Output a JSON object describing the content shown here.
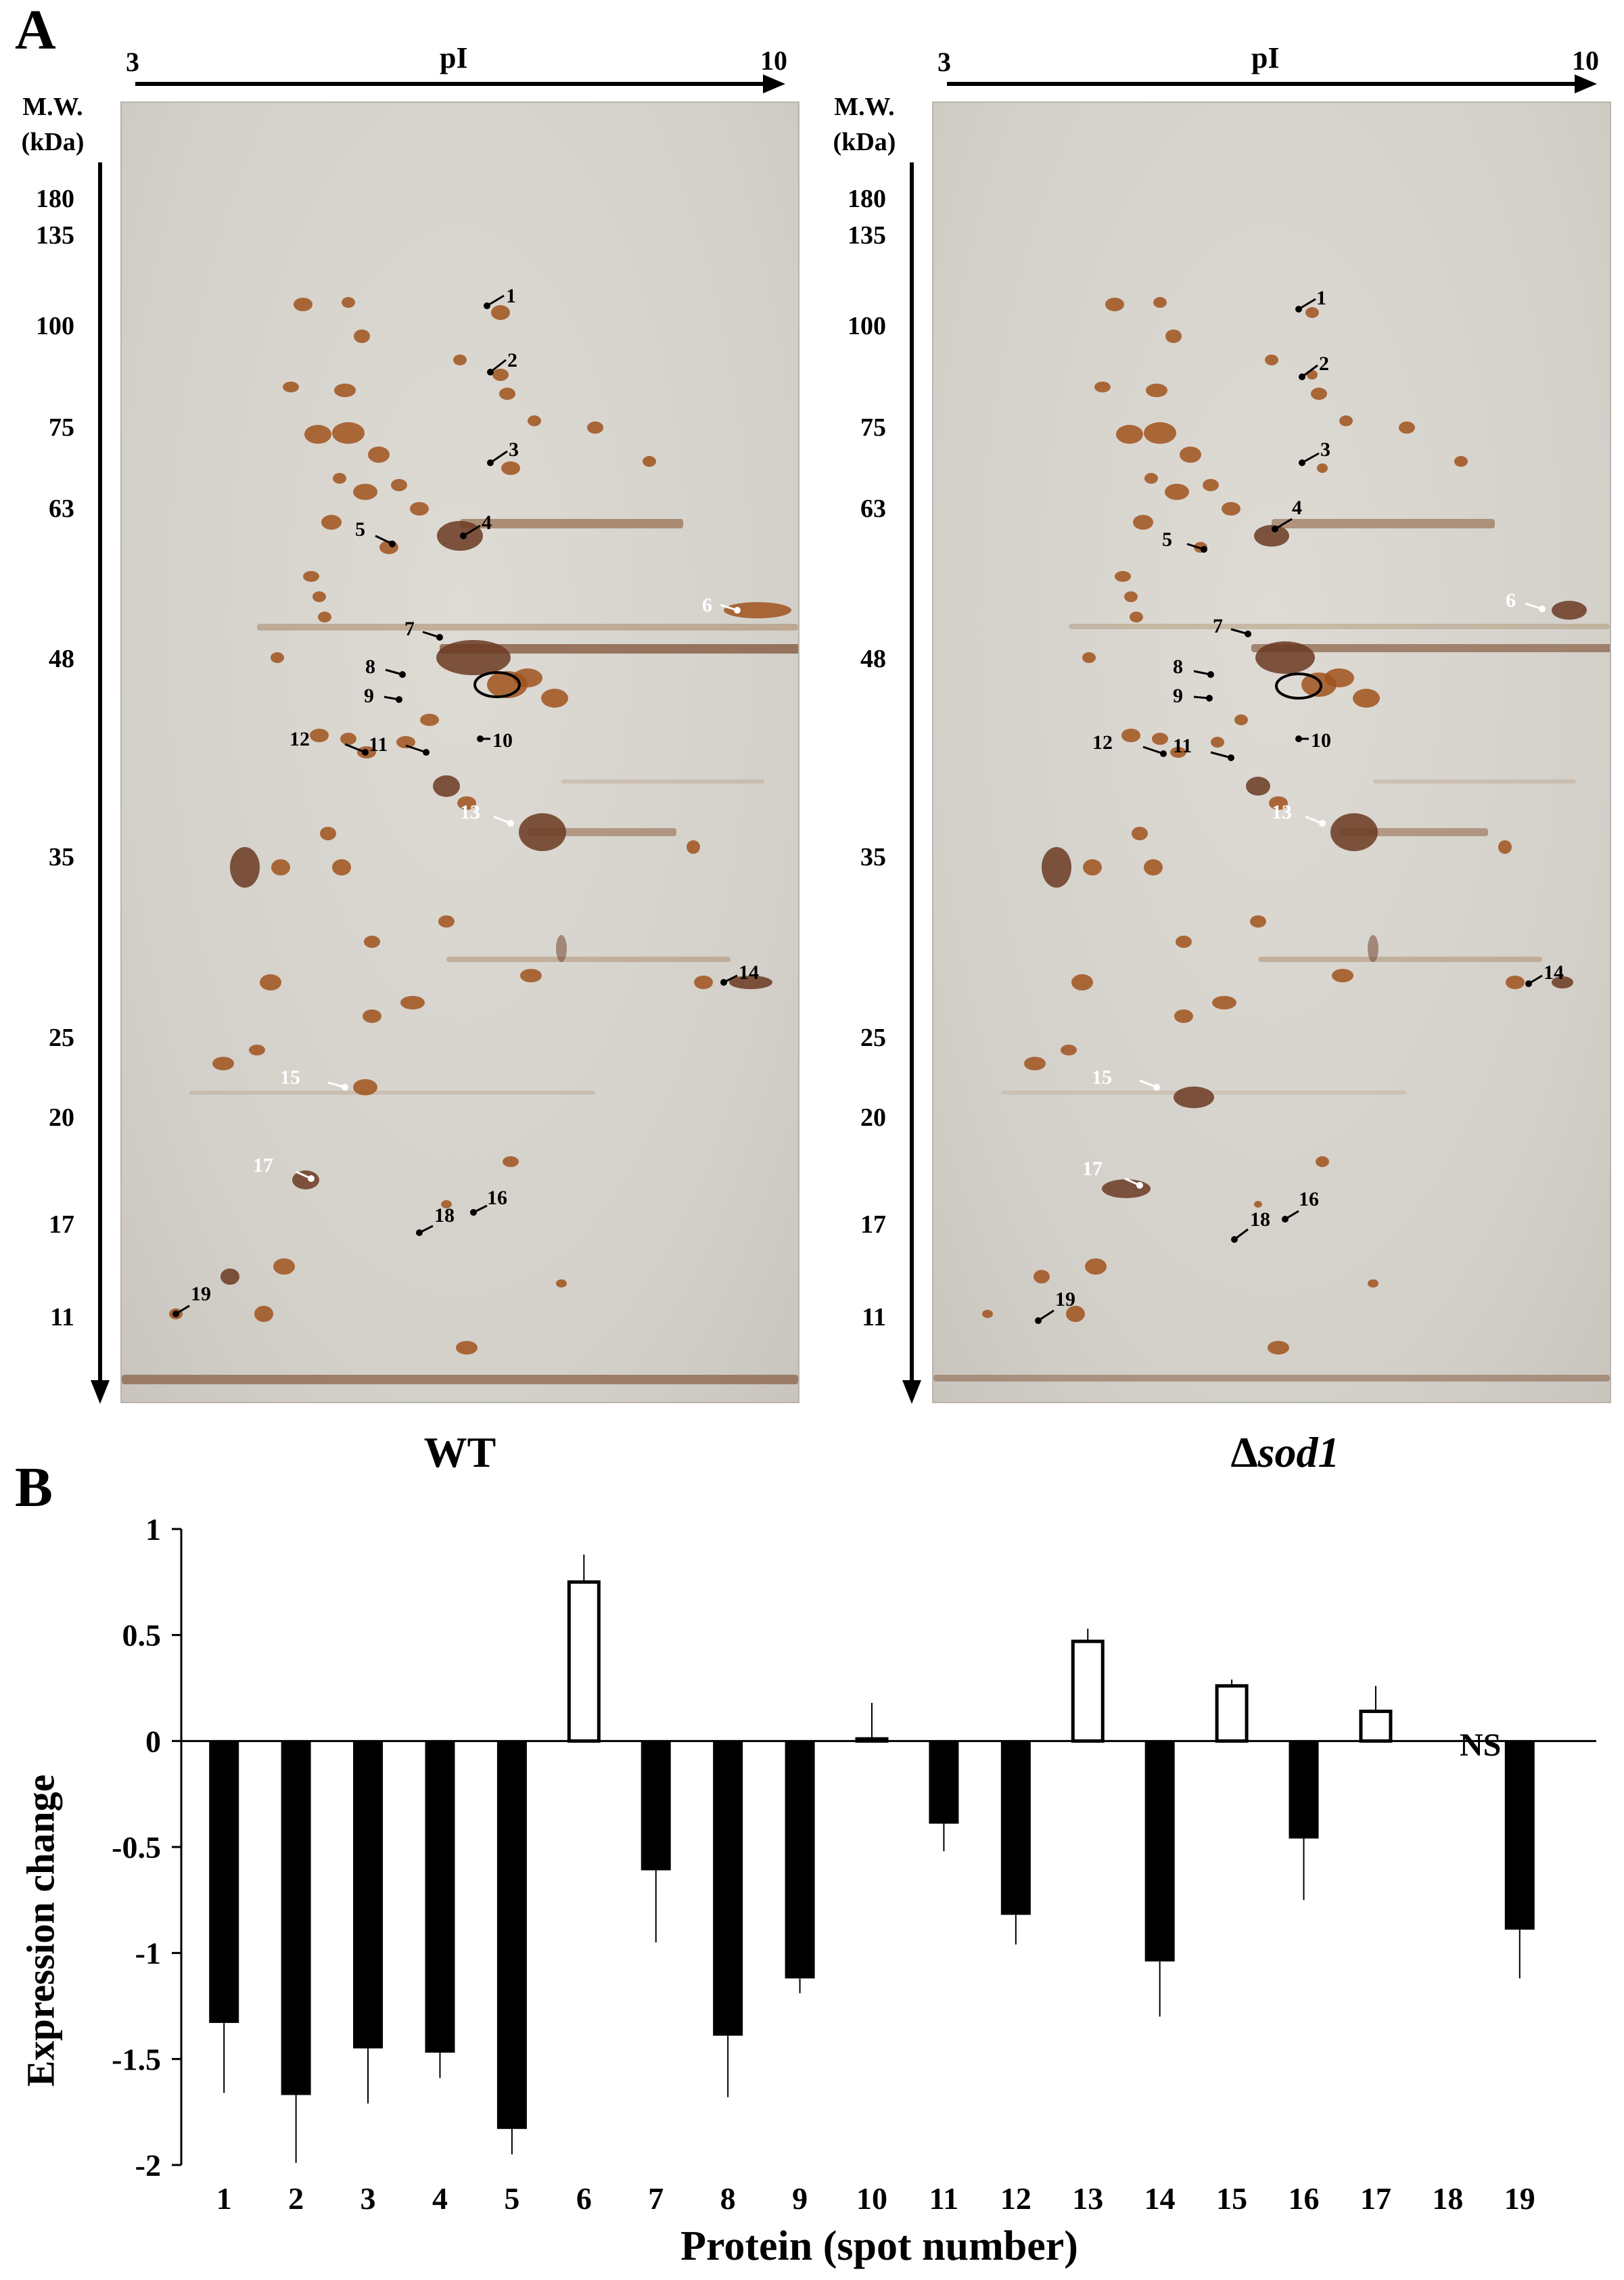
{
  "panel_a": {
    "letter": "A",
    "pi_axis": {
      "label": "pI",
      "min": "3",
      "max": "10"
    },
    "mw_axis": {
      "title_line1": "M.W.",
      "title_line2": "(kDa)",
      "ticks": [
        "180",
        "135",
        "100",
        "75",
        "63",
        "48",
        "35",
        "25",
        "20",
        "17",
        "11"
      ]
    },
    "gels": [
      {
        "name": "WT",
        "strain_prefix": "",
        "strain_italic": ""
      },
      {
        "name": "",
        "strain_prefix": "Δ",
        "strain_italic": "sod1"
      }
    ],
    "spot_labels": [
      "1",
      "2",
      "3",
      "4",
      "5",
      "6",
      "7",
      "8",
      "9",
      "10",
      "11",
      "12",
      "13",
      "14",
      "15",
      "16",
      "17",
      "18",
      "19"
    ],
    "circled_spot": "10",
    "colors": {
      "gel_bg": "#d9d6d0",
      "spot": "#a0521c",
      "spot_dark": "#6b3a22"
    }
  },
  "panel_b": {
    "letter": "B",
    "ns_label": "NS"
  },
  "chart_data": {
    "type": "bar",
    "ylabel": "Expression change",
    "xlabel": "Protein (spot number)",
    "ylim": [
      -2,
      1
    ],
    "yticks": [
      "1",
      "0.5",
      "0",
      "-0.5",
      "-1",
      "-1.5",
      "-2"
    ],
    "ytick_values": [
      1,
      0.5,
      0,
      -0.5,
      -1,
      -1.5,
      -2
    ],
    "categories": [
      "1",
      "2",
      "3",
      "4",
      "5",
      "6",
      "7",
      "8",
      "9",
      "10",
      "11",
      "12",
      "13",
      "14",
      "15",
      "16",
      "17",
      "18",
      "19"
    ],
    "values": [
      -1.33,
      -1.67,
      -1.45,
      -1.47,
      -1.83,
      0.75,
      -0.61,
      -1.39,
      -1.12,
      0.01,
      -0.39,
      -0.82,
      0.47,
      -1.04,
      0.26,
      -0.46,
      0.14,
      null,
      -0.89
    ],
    "errors": [
      0.33,
      0.32,
      0.26,
      0.12,
      0.12,
      0.13,
      0.34,
      0.29,
      0.07,
      0.17,
      0.13,
      0.14,
      0.06,
      0.26,
      0.03,
      0.29,
      0.12,
      null,
      0.23
    ],
    "filled": [
      true,
      true,
      true,
      true,
      true,
      false,
      true,
      true,
      true,
      false,
      true,
      true,
      false,
      true,
      false,
      true,
      false,
      false,
      true
    ],
    "colors": {
      "filled": "#000000",
      "open": "#ffffff",
      "outline": "#000000"
    }
  }
}
